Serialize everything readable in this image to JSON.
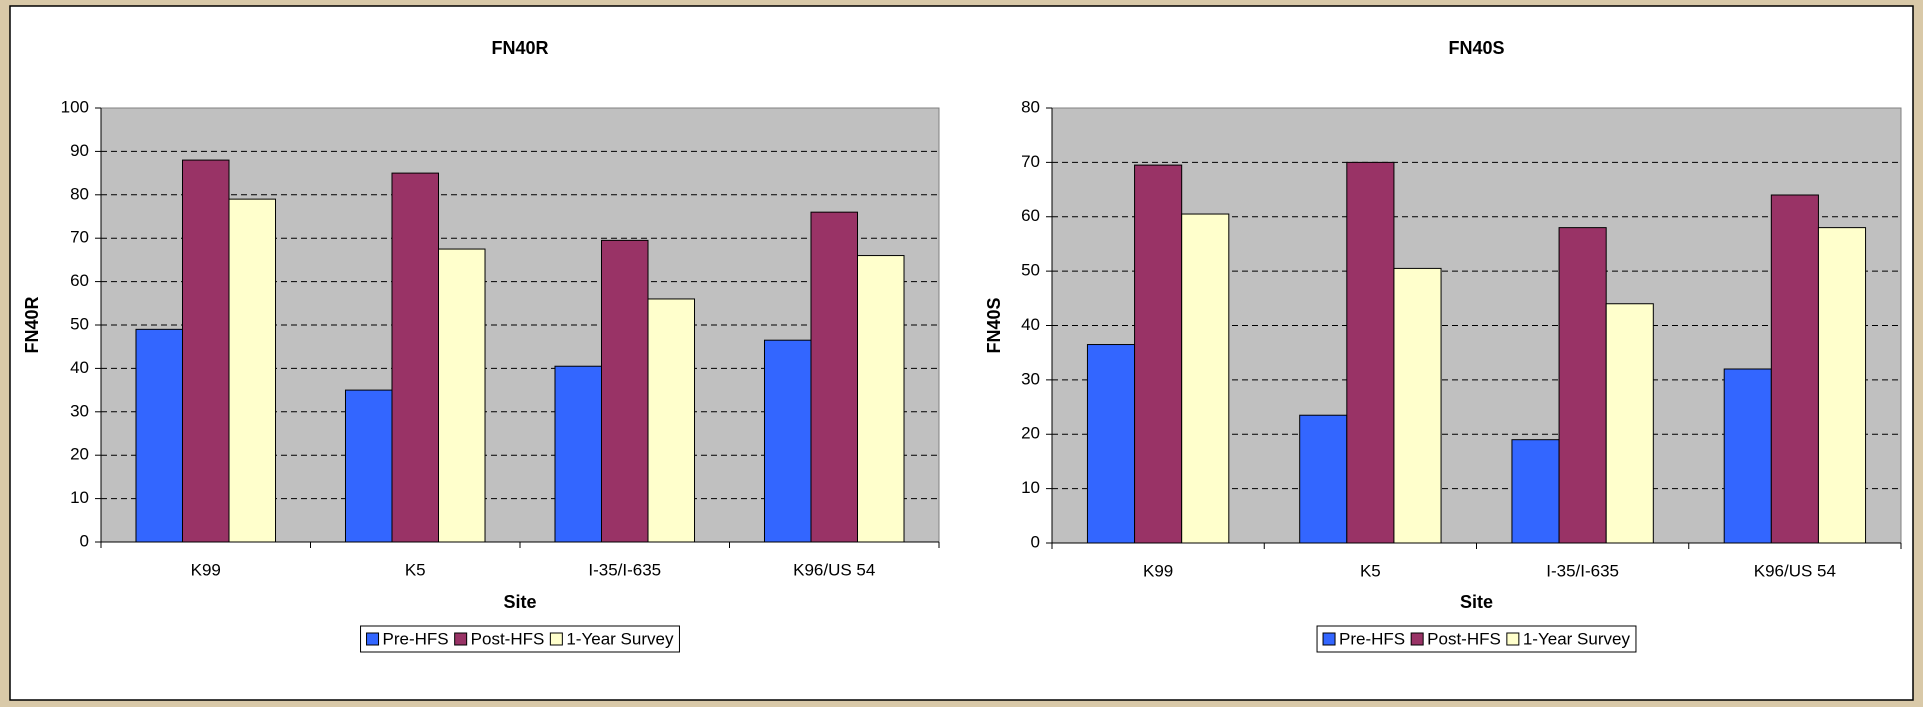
{
  "chart_data": [
    {
      "type": "bar",
      "title": "FN40R",
      "x_label": "Site",
      "y_label": "FN40R",
      "categories": [
        "K99",
        "K5",
        "I-35/I-635",
        "K96/US 54"
      ],
      "series": [
        {
          "name": "Pre-HFS",
          "color": "#3366ff",
          "values": [
            49,
            35,
            40.5,
            46.5
          ]
        },
        {
          "name": "Post-HFS",
          "color": "#993366",
          "values": [
            88,
            85,
            69.5,
            76
          ]
        },
        {
          "name": "1-Year Survey",
          "color": "#ffffcc",
          "values": [
            79,
            67.5,
            56,
            66
          ]
        }
      ],
      "ylim": [
        0,
        100
      ],
      "yticks": [
        0,
        10,
        20,
        30,
        40,
        50,
        60,
        70,
        80,
        90,
        100
      ],
      "grid": true,
      "legend": "bottom"
    },
    {
      "type": "bar",
      "title": "FN40S",
      "x_label": "Site",
      "y_label": "FN40S",
      "categories": [
        "K99",
        "K5",
        "I-35/I-635",
        "K96/US 54"
      ],
      "series": [
        {
          "name": "Pre-HFS",
          "color": "#3366ff",
          "values": [
            36.5,
            23.5,
            19,
            32
          ]
        },
        {
          "name": "Post-HFS",
          "color": "#993366",
          "values": [
            69.5,
            70,
            58,
            64
          ]
        },
        {
          "name": "1-Year Survey",
          "color": "#ffffcc",
          "values": [
            60.5,
            50.5,
            44,
            58
          ]
        }
      ],
      "ylim": [
        0,
        80
      ],
      "yticks": [
        0,
        10,
        20,
        30,
        40,
        50,
        60,
        70,
        80
      ],
      "grid": true,
      "legend": "bottom"
    }
  ]
}
